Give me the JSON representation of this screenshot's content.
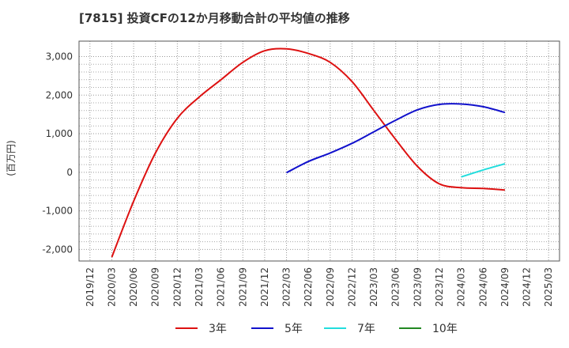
{
  "chart_data": {
    "type": "line",
    "title": "[7815]  投資CFの12か月移動合計の平均値の推移",
    "ylabel": "(百万円)",
    "xlabel": "",
    "ylim": [
      -2300,
      3400
    ],
    "yticks": [
      -2000,
      -1000,
      0,
      1000,
      2000,
      3000
    ],
    "ytick_labels": [
      "-2,000",
      "-1,000",
      "0",
      "1,000",
      "2,000",
      "3,000"
    ],
    "x_ticks": [
      "2019/12",
      "2020/03",
      "2020/06",
      "2020/09",
      "2020/12",
      "2021/03",
      "2021/06",
      "2021/09",
      "2021/12",
      "2022/03",
      "2022/06",
      "2022/09",
      "2022/12",
      "2023/03",
      "2023/06",
      "2023/09",
      "2023/12",
      "2024/03",
      "2024/06",
      "2024/09",
      "2024/12",
      "2025/03"
    ],
    "grid": true,
    "legend_position": "bottom",
    "series": [
      {
        "name": "3年",
        "color": "#dd1111",
        "points": [
          [
            "2020/03",
            -2200
          ],
          [
            "2020/06",
            -750
          ],
          [
            "2020/09",
            500
          ],
          [
            "2020/12",
            1400
          ],
          [
            "2021/03",
            1950
          ],
          [
            "2021/06",
            2400
          ],
          [
            "2021/09",
            2850
          ],
          [
            "2021/12",
            3150
          ],
          [
            "2022/03",
            3200
          ],
          [
            "2022/06",
            3080
          ],
          [
            "2022/09",
            2850
          ],
          [
            "2022/12",
            2350
          ],
          [
            "2023/03",
            1600
          ],
          [
            "2023/06",
            850
          ],
          [
            "2023/09",
            150
          ],
          [
            "2023/12",
            -300
          ],
          [
            "2024/03",
            -400
          ],
          [
            "2024/06",
            -420
          ],
          [
            "2024/09",
            -460
          ]
        ]
      },
      {
        "name": "5年",
        "color": "#1111cc",
        "points": [
          [
            "2022/03",
            -10
          ],
          [
            "2022/06",
            280
          ],
          [
            "2022/09",
            500
          ],
          [
            "2022/12",
            750
          ],
          [
            "2023/03",
            1050
          ],
          [
            "2023/06",
            1350
          ],
          [
            "2023/09",
            1620
          ],
          [
            "2023/12",
            1760
          ],
          [
            "2024/03",
            1770
          ],
          [
            "2024/06",
            1700
          ],
          [
            "2024/09",
            1550
          ]
        ]
      },
      {
        "name": "7年",
        "color": "#22dddd",
        "points": [
          [
            "2024/03",
            -120
          ],
          [
            "2024/06",
            60
          ],
          [
            "2024/09",
            220
          ]
        ]
      },
      {
        "name": "10年",
        "color": "#228822",
        "points": []
      }
    ]
  }
}
